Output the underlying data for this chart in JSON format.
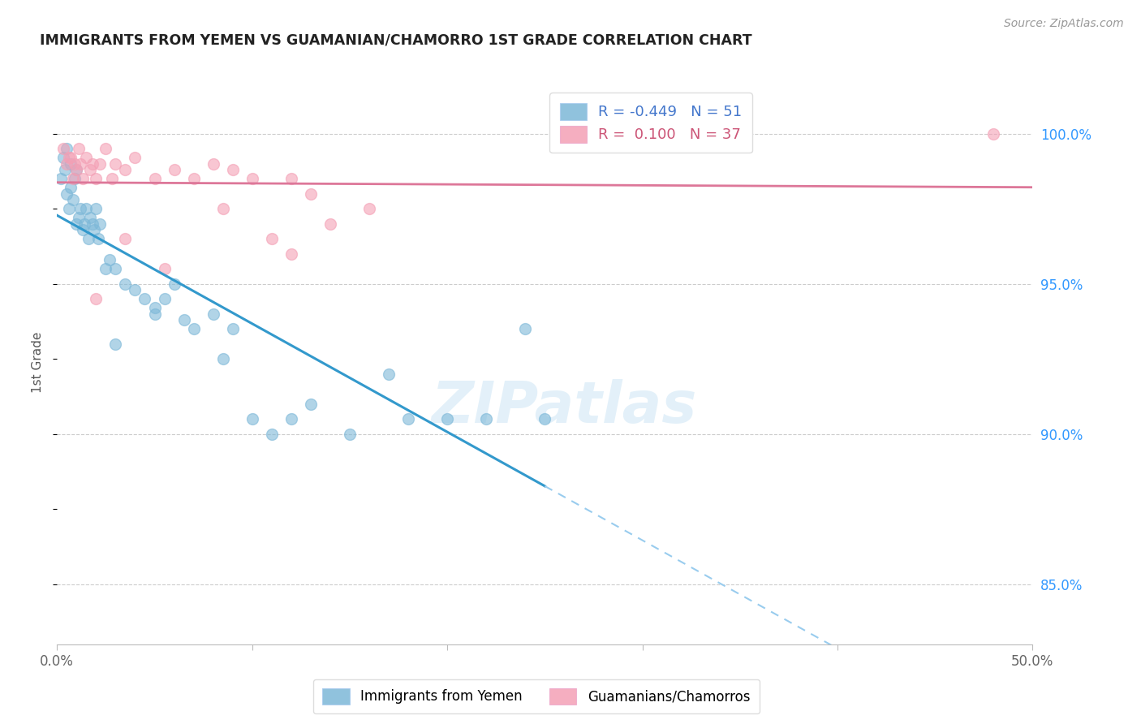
{
  "title": "IMMIGRANTS FROM YEMEN VS GUAMANIAN/CHAMORRO 1ST GRADE CORRELATION CHART",
  "source": "Source: ZipAtlas.com",
  "ylabel": "1st Grade",
  "right_yticks": [
    85.0,
    90.0,
    95.0,
    100.0
  ],
  "xmin": 0.0,
  "xmax": 50.0,
  "ymin": 83.0,
  "ymax": 101.8,
  "blue_R": -0.449,
  "blue_N": 51,
  "pink_R": 0.1,
  "pink_N": 37,
  "legend_label_blue": "Immigrants from Yemen",
  "legend_label_pink": "Guamanians/Chamorros",
  "blue_color": "#7db8d8",
  "pink_color": "#f4a0b5",
  "blue_line_color": "#3399cc",
  "blue_dash_color": "#99ccee",
  "pink_line_color": "#dd7799",
  "blue_scatter_x": [
    0.2,
    0.3,
    0.4,
    0.5,
    0.5,
    0.6,
    0.7,
    0.7,
    0.8,
    0.9,
    1.0,
    1.0,
    1.1,
    1.2,
    1.3,
    1.4,
    1.5,
    1.6,
    1.7,
    1.8,
    1.9,
    2.0,
    2.1,
    2.2,
    2.5,
    2.7,
    3.0,
    3.5,
    4.0,
    4.5,
    5.0,
    5.5,
    6.0,
    7.0,
    8.0,
    9.0,
    10.0,
    11.0,
    12.0,
    13.0,
    15.0,
    17.0,
    18.0,
    20.0,
    22.0,
    24.0,
    25.0,
    3.0,
    5.0,
    6.5,
    8.5
  ],
  "blue_scatter_y": [
    98.5,
    99.2,
    98.8,
    98.0,
    99.5,
    97.5,
    98.2,
    99.0,
    97.8,
    98.5,
    97.0,
    98.8,
    97.2,
    97.5,
    96.8,
    97.0,
    97.5,
    96.5,
    97.2,
    97.0,
    96.8,
    97.5,
    96.5,
    97.0,
    95.5,
    95.8,
    95.5,
    95.0,
    94.8,
    94.5,
    94.0,
    94.5,
    95.0,
    93.5,
    94.0,
    93.5,
    90.5,
    90.0,
    90.5,
    91.0,
    90.0,
    92.0,
    90.5,
    90.5,
    90.5,
    93.5,
    90.5,
    93.0,
    94.2,
    93.8,
    92.5
  ],
  "pink_scatter_x": [
    0.3,
    0.5,
    0.7,
    0.8,
    0.9,
    1.0,
    1.1,
    1.2,
    1.3,
    1.5,
    1.7,
    1.8,
    2.0,
    2.2,
    2.5,
    2.8,
    3.0,
    3.5,
    4.0,
    5.0,
    6.0,
    7.0,
    8.0,
    9.0,
    10.0,
    11.0,
    12.0,
    13.0,
    14.0,
    16.0,
    2.0,
    3.5,
    5.5,
    8.5,
    12.0,
    0.6,
    48.0
  ],
  "pink_scatter_y": [
    99.5,
    99.0,
    99.2,
    98.5,
    99.0,
    98.8,
    99.5,
    99.0,
    98.5,
    99.2,
    98.8,
    99.0,
    98.5,
    99.0,
    99.5,
    98.5,
    99.0,
    98.8,
    99.2,
    98.5,
    98.8,
    98.5,
    99.0,
    98.8,
    98.5,
    96.5,
    96.0,
    98.0,
    97.0,
    97.5,
    94.5,
    96.5,
    95.5,
    97.5,
    98.5,
    99.2,
    100.0
  ],
  "blue_solid_x_end": 25.0,
  "watermark": "ZIPatlas",
  "background_color": "#ffffff",
  "grid_color": "#cccccc"
}
